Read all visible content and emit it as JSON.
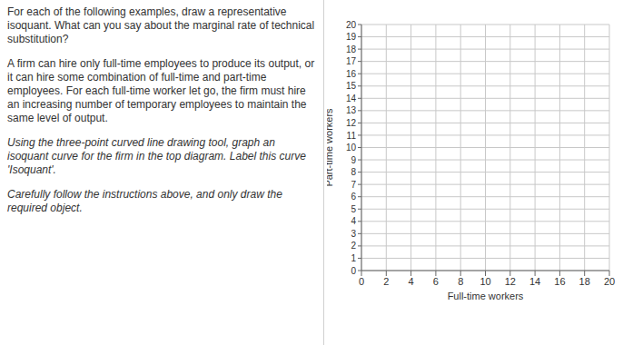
{
  "question": {
    "problem": [
      "For each of the following examples, draw a representative isoquant. What can you say about the marginal rate of technical substitution?",
      "A firm can hire only full-time employees to produce its output, or it can hire some combination of full-time and part-time employees. For each full-time worker let go, the firm must hire an increasing number of temporary employees to maintain the same level of output."
    ],
    "instructions": [
      "Using the three-point curved line drawing tool, graph an isoquant curve for the firm in the top diagram. Label this curve 'Isoquant'.",
      "Carefully follow the instructions above, and only draw the required object."
    ]
  },
  "chart_data": {
    "type": "line",
    "x_label": "Full-time workers",
    "y_label": "Part-time workers",
    "xlim": [
      0,
      20
    ],
    "xticks": [
      0,
      2,
      4,
      6,
      8,
      10,
      12,
      14,
      16,
      18,
      20
    ],
    "ylim": [
      0,
      20
    ],
    "yticks": [
      0,
      1,
      2,
      3,
      4,
      5,
      6,
      7,
      8,
      9,
      10,
      11,
      12,
      13,
      14,
      15,
      16,
      17,
      18,
      19,
      20
    ],
    "grid": true,
    "series": []
  }
}
